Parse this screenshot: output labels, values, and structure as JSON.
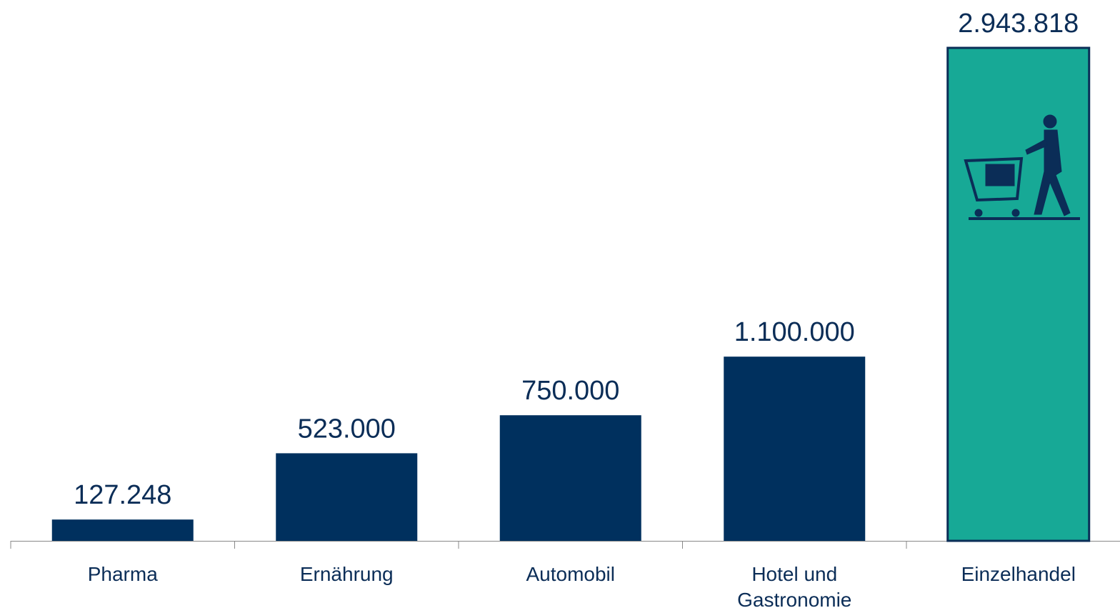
{
  "chart_data": {
    "type": "bar",
    "categories": [
      "Pharma",
      "Ernährung",
      "Automobil",
      "Hotel und Gastronomie",
      "Einzelhandel"
    ],
    "values": [
      127248,
      523000,
      750000,
      1100000,
      2943818
    ],
    "value_labels": [
      "127.248",
      "523.000",
      "750.000",
      "1.100.000",
      "2.943.818"
    ],
    "colors": [
      "#00305e",
      "#00305e",
      "#00305e",
      "#00305e",
      "#17a996"
    ]
  }
}
